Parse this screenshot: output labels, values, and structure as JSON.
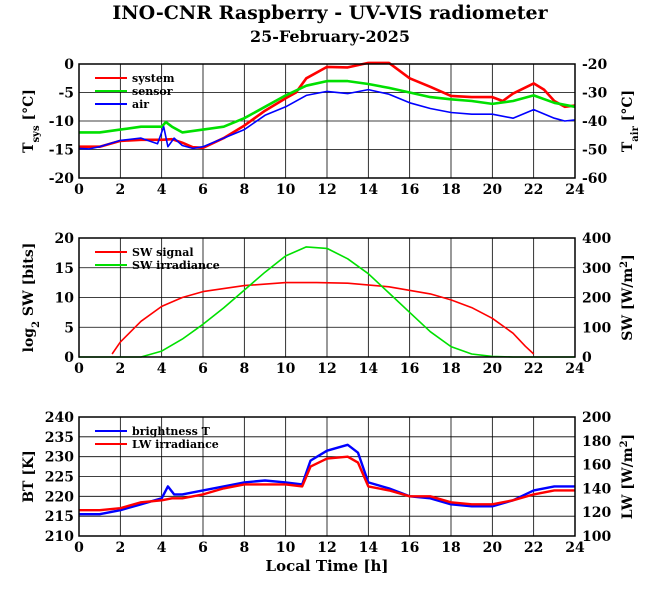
{
  "header": {
    "title": "INO-CNR Raspberry - UV-VIS radiometer",
    "date": "25-February-2025"
  },
  "chart_data": [
    {
      "type": "line",
      "panel": "temperature",
      "left_axis": {
        "ylabel": "T",
        "ylabel_sub": "sys",
        "ylabel_unit": "[°C]",
        "ylim": [
          -20,
          0
        ],
        "ticks": [
          0,
          -5,
          -10,
          -15,
          -20
        ]
      },
      "right_axis": {
        "ylabel": "T",
        "ylabel_sub": "air",
        "ylabel_unit": "[°C]",
        "ylim": [
          -60,
          -20
        ],
        "ticks": [
          -20,
          -30,
          -40,
          -50,
          -60
        ]
      },
      "xlim": [
        0,
        24
      ],
      "xticks": [
        0,
        2,
        4,
        6,
        8,
        10,
        12,
        14,
        16,
        18,
        20,
        22,
        24
      ],
      "grid": true,
      "legend_position": "top-left",
      "series": [
        {
          "name": "system",
          "color": "#ff0000",
          "axis": "left",
          "width": 2.6,
          "x": [
            0,
            1,
            2,
            3,
            4,
            4.5,
            5,
            5.5,
            6,
            7,
            8,
            9,
            10,
            10.5,
            11,
            12,
            13,
            14,
            15,
            16,
            17,
            18,
            19,
            20,
            20.5,
            21,
            22,
            22.5,
            23,
            23.5,
            24
          ],
          "y": [
            -14.5,
            -14.5,
            -13.5,
            -13.3,
            -13.3,
            -13.2,
            -13.8,
            -14.6,
            -14.7,
            -13.0,
            -10.8,
            -8.2,
            -6.0,
            -5.0,
            -2.5,
            -0.5,
            -0.6,
            0.2,
            0.2,
            -2.5,
            -4.0,
            -5.6,
            -5.8,
            -5.8,
            -6.5,
            -5.2,
            -3.4,
            -4.5,
            -6.5,
            -7.5,
            -7.3
          ]
        },
        {
          "name": "sensor",
          "color": "#00e000",
          "axis": "left",
          "width": 2.6,
          "x": [
            0,
            1,
            2,
            3,
            4,
            4.2,
            4.5,
            5,
            6,
            7,
            8,
            9,
            10,
            11,
            12,
            13,
            14,
            15,
            16,
            17,
            18,
            19,
            20,
            21,
            22,
            23,
            24
          ],
          "y": [
            -12.0,
            -12.0,
            -11.5,
            -11.0,
            -11.0,
            -10.2,
            -11.0,
            -12.0,
            -11.5,
            -11.0,
            -9.5,
            -7.5,
            -5.5,
            -3.8,
            -3.0,
            -3.0,
            -3.5,
            -4.2,
            -5.0,
            -5.8,
            -6.2,
            -6.5,
            -7.0,
            -6.5,
            -5.5,
            -6.8,
            -7.5
          ]
        },
        {
          "name": "air",
          "color": "#0000ff",
          "axis": "left",
          "width": 1.6,
          "x": [
            0,
            0.5,
            1,
            2,
            3,
            3.8,
            4.1,
            4.3,
            4.6,
            5,
            5.5,
            6,
            7,
            8,
            9,
            10,
            11,
            12,
            13,
            14,
            15,
            16,
            17,
            18,
            19,
            20,
            21,
            22,
            23,
            23.5,
            24
          ],
          "y": [
            -14.8,
            -14.9,
            -14.5,
            -13.4,
            -13.0,
            -14.0,
            -11.0,
            -14.5,
            -13.0,
            -14.3,
            -14.8,
            -14.5,
            -13.0,
            -11.5,
            -9.0,
            -7.5,
            -5.5,
            -4.8,
            -5.2,
            -4.5,
            -5.3,
            -6.8,
            -7.8,
            -8.5,
            -8.8,
            -8.8,
            -9.5,
            -8.0,
            -9.5,
            -10.0,
            -9.8
          ]
        }
      ]
    },
    {
      "type": "line",
      "panel": "shortwave",
      "left_axis": {
        "ylabel": "log",
        "ylabel_sub": "2",
        "ylabel_unit": "SW [bits]",
        "ylim": [
          0,
          20
        ],
        "ticks": [
          0,
          5,
          10,
          15,
          20
        ]
      },
      "right_axis": {
        "ylabel": "SW [W/m",
        "ylabel_sup": "2",
        "ylabel_unit": "]",
        "ylim": [
          0,
          400
        ],
        "ticks": [
          0,
          100,
          200,
          300,
          400
        ]
      },
      "xlim": [
        0,
        24
      ],
      "xticks": [
        0,
        2,
        4,
        6,
        8,
        10,
        12,
        14,
        16,
        18,
        20,
        22,
        24
      ],
      "grid": true,
      "legend_position": "top-left",
      "series": [
        {
          "name": "SW signal",
          "color": "#ff0000",
          "axis": "left",
          "width": 1.6,
          "x": [
            1.6,
            2.0,
            3.0,
            4.0,
            5.0,
            6.0,
            8.0,
            10.0,
            11.5,
            13.0,
            15.0,
            17.0,
            18.0,
            19.0,
            20.0,
            21.0,
            21.6,
            22.0
          ],
          "y": [
            0.5,
            2.5,
            6.0,
            8.5,
            10.0,
            11.0,
            12.0,
            12.5,
            12.5,
            12.4,
            11.8,
            10.6,
            9.6,
            8.3,
            6.5,
            4.0,
            1.8,
            0.5
          ]
        },
        {
          "name": "SW irradiance",
          "color": "#00e000",
          "axis": "right",
          "width": 1.6,
          "x": [
            0,
            3.0,
            4.0,
            5.0,
            6.0,
            7.0,
            8.0,
            9.0,
            10.0,
            11.0,
            12.0,
            13.0,
            14.0,
            15.0,
            16.0,
            17.0,
            18.0,
            19.0,
            20.0,
            21.0,
            24
          ],
          "y": [
            0,
            0,
            20,
            60,
            110,
            165,
            225,
            285,
            340,
            370,
            365,
            330,
            280,
            215,
            150,
            85,
            35,
            10,
            2,
            0,
            0
          ]
        }
      ]
    },
    {
      "type": "line",
      "panel": "longwave",
      "left_axis": {
        "ylabel": "BT [K]",
        "ylim": [
          210,
          240
        ],
        "ticks": [
          210,
          215,
          220,
          225,
          230,
          235,
          240
        ]
      },
      "right_axis": {
        "ylabel": "LW [W/m",
        "ylabel_sup": "2",
        "ylabel_unit": "]",
        "ylim": [
          100,
          200
        ],
        "ticks": [
          100,
          120,
          140,
          160,
          180,
          200
        ]
      },
      "xlabel": "Local Time [h]",
      "xlim": [
        0,
        24
      ],
      "xticks": [
        0,
        2,
        4,
        6,
        8,
        10,
        12,
        14,
        16,
        18,
        20,
        22,
        24
      ],
      "grid": true,
      "legend_position": "top-left",
      "series": [
        {
          "name": "brightness T",
          "color": "#0000ff",
          "axis": "left",
          "width": 2.4,
          "x": [
            0,
            1,
            2,
            3,
            4,
            4.3,
            4.6,
            5,
            6,
            7,
            8,
            9,
            10,
            10.8,
            11.2,
            12,
            13,
            13.5,
            14,
            15,
            16,
            17,
            18,
            19,
            20,
            21,
            22,
            23,
            24
          ],
          "y": [
            215.5,
            215.5,
            216.5,
            218.0,
            219.5,
            222.5,
            220.5,
            220.5,
            221.5,
            222.5,
            223.5,
            224.0,
            223.5,
            223.0,
            229.0,
            231.5,
            233.0,
            231.0,
            223.5,
            222.0,
            220.0,
            219.5,
            218.0,
            217.5,
            217.5,
            219.0,
            221.5,
            222.5,
            222.5
          ]
        },
        {
          "name": "LW irradiance",
          "color": "#ff0000",
          "axis": "left",
          "width": 2.4,
          "x": [
            0,
            1,
            2,
            3,
            4,
            4.5,
            5,
            6,
            7,
            8,
            9,
            10,
            10.8,
            11.2,
            12,
            13,
            13.5,
            14,
            15,
            16,
            17,
            18,
            19,
            20,
            21,
            22,
            23,
            24
          ],
          "y": [
            216.5,
            216.5,
            217.0,
            218.5,
            219.0,
            219.5,
            219.5,
            220.5,
            222.0,
            223.0,
            223.0,
            223.0,
            222.5,
            227.5,
            229.5,
            230.0,
            228.5,
            222.5,
            221.5,
            220.0,
            220.0,
            218.5,
            218.0,
            218.0,
            219.0,
            220.5,
            221.5,
            221.5
          ]
        }
      ]
    }
  ]
}
